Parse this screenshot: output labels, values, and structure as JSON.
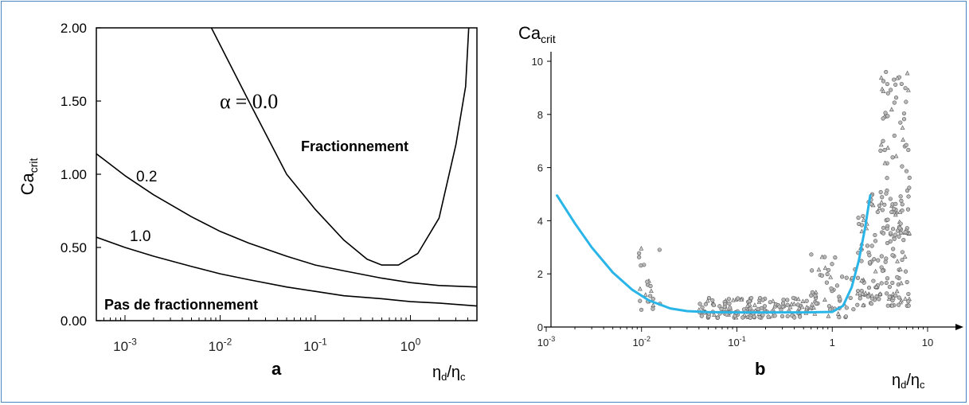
{
  "chart_data": [
    {
      "type": "line",
      "panel_label": "a",
      "ylabel_main": "Ca",
      "ylabel_sub": "crit",
      "xlabel": "ηd/ηc",
      "xlabel_num": "η",
      "xlabel_num_sub": "d",
      "xlabel_den": "η",
      "xlabel_den_sub": "c",
      "x_scale": "log",
      "xlim": [
        0.0005,
        5
      ],
      "ylim": [
        0,
        2
      ],
      "y_ticks": [
        "0.00",
        "0.50",
        "1.00",
        "1.50",
        "2.00"
      ],
      "x_ticks": [
        {
          "base": "10",
          "exp": "-3"
        },
        {
          "base": "10",
          "exp": "-2"
        },
        {
          "base": "10",
          "exp": "-1"
        },
        {
          "base": "10",
          "exp": "0"
        }
      ],
      "region_labels": {
        "upper": "Fractionnement",
        "lower": "Pas de fractionnement"
      },
      "series": [
        {
          "name": "α = 0.0",
          "label_symbol": "α",
          "label_value": "= 0.0",
          "x": [
            0.0081,
            0.02,
            0.05,
            0.1,
            0.2,
            0.35,
            0.5,
            0.75,
            1.2,
            2,
            3,
            3.8,
            4.1
          ],
          "y": [
            2.0,
            1.5,
            1.0,
            0.76,
            0.55,
            0.42,
            0.38,
            0.38,
            0.46,
            0.7,
            1.2,
            1.6,
            2.0
          ]
        },
        {
          "name": "0.2",
          "label_value": "0.2",
          "x": [
            0.0005,
            0.001,
            0.002,
            0.005,
            0.01,
            0.02,
            0.05,
            0.1,
            0.2,
            0.5,
            1,
            2,
            5
          ],
          "y": [
            1.14,
            0.99,
            0.86,
            0.71,
            0.61,
            0.53,
            0.44,
            0.38,
            0.34,
            0.29,
            0.26,
            0.24,
            0.23
          ]
        },
        {
          "name": "1.0",
          "label_value": "1.0",
          "x": [
            0.0005,
            0.001,
            0.002,
            0.005,
            0.01,
            0.02,
            0.05,
            0.1,
            0.2,
            0.5,
            1,
            2,
            5
          ],
          "y": [
            0.57,
            0.5,
            0.44,
            0.37,
            0.32,
            0.28,
            0.23,
            0.2,
            0.17,
            0.15,
            0.13,
            0.12,
            0.1
          ]
        }
      ]
    },
    {
      "type": "scatter",
      "panel_label": "b",
      "ylabel_main": "Ca",
      "ylabel_sub": "crit",
      "xlabel": "ηd/ηc",
      "xlabel_num": "η",
      "xlabel_num_sub": "d",
      "xlabel_den": "η",
      "xlabel_den_sub": "c",
      "x_scale": "log",
      "xlim": [
        0.001,
        20
      ],
      "ylim": [
        0,
        10
      ],
      "y_ticks": [
        "0",
        "2",
        "4",
        "6",
        "8",
        "10"
      ],
      "x_ticks": [
        {
          "base": "10",
          "exp": "-3"
        },
        {
          "base": "10",
          "exp": "-2"
        },
        {
          "base": "10",
          "exp": "-1"
        },
        {
          "base": "1",
          "exp": ""
        },
        {
          "base": "10",
          "exp": ""
        }
      ],
      "colors": {
        "fit": "#29b5e8",
        "points": "#7a7a7a"
      },
      "fit_curve": {
        "x": [
          0.0013,
          0.002,
          0.003,
          0.005,
          0.008,
          0.012,
          0.02,
          0.03,
          0.05,
          0.1,
          0.2,
          0.5,
          1,
          1.3,
          1.6,
          1.9,
          2.2,
          2.5
        ],
        "y": [
          4.95,
          3.9,
          3.0,
          2.05,
          1.4,
          1.0,
          0.7,
          0.6,
          0.56,
          0.55,
          0.55,
          0.55,
          0.57,
          0.8,
          1.5,
          2.5,
          3.7,
          4.95
        ]
      },
      "clusters": [
        {
          "x_range": [
            0.009,
            0.016
          ],
          "y_range": [
            0.6,
            3.0
          ],
          "count": 22
        },
        {
          "x_range": [
            0.04,
            0.6
          ],
          "y_range": [
            0.35,
            1.1
          ],
          "count": 150
        },
        {
          "x_range": [
            0.6,
            1.8
          ],
          "y_range": [
            0.3,
            2.8
          ],
          "count": 55
        },
        {
          "x_range": [
            1.8,
            6.5
          ],
          "y_range": [
            0.8,
            5.0
          ],
          "count": 150
        },
        {
          "x_range": [
            3.2,
            6.5
          ],
          "y_range": [
            3.5,
            9.9
          ],
          "count": 70
        }
      ]
    }
  ]
}
